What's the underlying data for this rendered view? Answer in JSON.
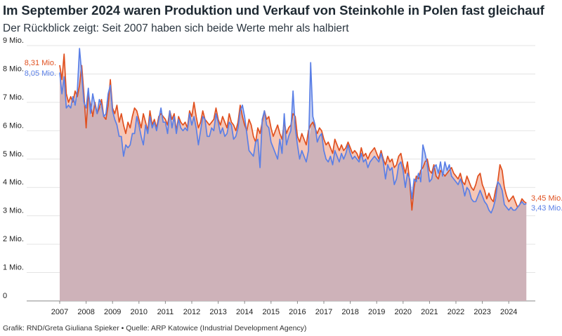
{
  "header": {
    "title": "Im September 2024 waren Produktion und Verkauf von Steinkohle in Polen fast gleichauf",
    "subtitle": "Der Rückblick zeigt: Seit 2007 haben sich beide Werte mehr als halbiert"
  },
  "footer": {
    "credit": "Grafik: RND/Greta Giuliana Spieker • Quelle: ARP Katowice (Industrial Development Agency)"
  },
  "colors": {
    "production": "#e0501f",
    "sales": "#5a7fe6",
    "base_area": "#ceb2b9",
    "prod_above_area": "#f6c6b6",
    "sales_above_area": "#c6d0f2",
    "grid": "#e4e4e4"
  },
  "chart_data": {
    "type": "line",
    "xlabel": "",
    "ylabel": "",
    "ylim": [
      0,
      9
    ],
    "y_ticks": [
      {
        "value": 0,
        "label": "0"
      },
      {
        "value": 1,
        "label": "1 Mio."
      },
      {
        "value": 2,
        "label": "2 Mio."
      },
      {
        "value": 3,
        "label": "3 Mio."
      },
      {
        "value": 4,
        "label": "4 Mio."
      },
      {
        "value": 5,
        "label": "5 Mio."
      },
      {
        "value": 6,
        "label": "6 Mio."
      },
      {
        "value": 7,
        "label": "7 Mio."
      },
      {
        "value": 8,
        "label": "8 Mio."
      },
      {
        "value": 9,
        "label": "9 Mio."
      }
    ],
    "x_ticks": [
      "2007",
      "2008",
      "2009",
      "2010",
      "2011",
      "2012",
      "2013",
      "2014",
      "2015",
      "2016",
      "2017",
      "2018",
      "2019",
      "2020",
      "2021",
      "2022",
      "2023",
      "2024"
    ],
    "start_label_production": "8,31 Mio.",
    "start_label_sales": "8,05 Mio.",
    "end_label_production": "3,45 Mio.",
    "end_label_sales": "3,43 Mio.",
    "x": [
      "2007-01",
      "2007-02",
      "2007-03",
      "2007-04",
      "2007-05",
      "2007-06",
      "2007-07",
      "2007-08",
      "2007-09",
      "2007-10",
      "2007-11",
      "2007-12",
      "2008-01",
      "2008-02",
      "2008-03",
      "2008-04",
      "2008-05",
      "2008-06",
      "2008-07",
      "2008-08",
      "2008-09",
      "2008-10",
      "2008-11",
      "2008-12",
      "2009-01",
      "2009-02",
      "2009-03",
      "2009-04",
      "2009-05",
      "2009-06",
      "2009-07",
      "2009-08",
      "2009-09",
      "2009-10",
      "2009-11",
      "2009-12",
      "2010-01",
      "2010-02",
      "2010-03",
      "2010-04",
      "2010-05",
      "2010-06",
      "2010-07",
      "2010-08",
      "2010-09",
      "2010-10",
      "2010-11",
      "2010-12",
      "2011-01",
      "2011-02",
      "2011-03",
      "2011-04",
      "2011-05",
      "2011-06",
      "2011-07",
      "2011-08",
      "2011-09",
      "2011-10",
      "2011-11",
      "2011-12",
      "2012-01",
      "2012-02",
      "2012-03",
      "2012-04",
      "2012-05",
      "2012-06",
      "2012-07",
      "2012-08",
      "2012-09",
      "2012-10",
      "2012-11",
      "2012-12",
      "2013-01",
      "2013-02",
      "2013-03",
      "2013-04",
      "2013-05",
      "2013-06",
      "2013-07",
      "2013-08",
      "2013-09",
      "2013-10",
      "2013-11",
      "2013-12",
      "2014-01",
      "2014-02",
      "2014-03",
      "2014-04",
      "2014-05",
      "2014-06",
      "2014-07",
      "2014-08",
      "2014-09",
      "2014-10",
      "2014-11",
      "2014-12",
      "2015-01",
      "2015-02",
      "2015-03",
      "2015-04",
      "2015-05",
      "2015-06",
      "2015-07",
      "2015-08",
      "2015-09",
      "2015-10",
      "2015-11",
      "2015-12",
      "2016-01",
      "2016-02",
      "2016-03",
      "2016-04",
      "2016-05",
      "2016-06",
      "2016-07",
      "2016-08",
      "2016-09",
      "2016-10",
      "2016-11",
      "2016-12",
      "2017-01",
      "2017-02",
      "2017-03",
      "2017-04",
      "2017-05",
      "2017-06",
      "2017-07",
      "2017-08",
      "2017-09",
      "2017-10",
      "2017-11",
      "2017-12",
      "2018-01",
      "2018-02",
      "2018-03",
      "2018-04",
      "2018-05",
      "2018-06",
      "2018-07",
      "2018-08",
      "2018-09",
      "2018-10",
      "2018-11",
      "2018-12",
      "2019-01",
      "2019-02",
      "2019-03",
      "2019-04",
      "2019-05",
      "2019-06",
      "2019-07",
      "2019-08",
      "2019-09",
      "2019-10",
      "2019-11",
      "2019-12",
      "2020-01",
      "2020-02",
      "2020-03",
      "2020-04",
      "2020-05",
      "2020-06",
      "2020-07",
      "2020-08",
      "2020-09",
      "2020-10",
      "2020-11",
      "2020-12",
      "2021-01",
      "2021-02",
      "2021-03",
      "2021-04",
      "2021-05",
      "2021-06",
      "2021-07",
      "2021-08",
      "2021-09",
      "2021-10",
      "2021-11",
      "2021-12",
      "2022-01",
      "2022-02",
      "2022-03",
      "2022-04",
      "2022-05",
      "2022-06",
      "2022-07",
      "2022-08",
      "2022-09",
      "2022-10",
      "2022-11",
      "2022-12",
      "2023-01",
      "2023-02",
      "2023-03",
      "2023-04",
      "2023-05",
      "2023-06",
      "2023-07",
      "2023-08",
      "2023-09",
      "2023-10",
      "2023-11",
      "2023-12",
      "2024-01",
      "2024-02",
      "2024-03",
      "2024-04",
      "2024-05",
      "2024-06",
      "2024-07",
      "2024-08",
      "2024-09"
    ],
    "series": [
      {
        "values": [
          8.31,
          7.8,
          8.7,
          7.3,
          7.0,
          7.2,
          7.0,
          7.4,
          7.2,
          7.6,
          8.3,
          7.3,
          6.1,
          7.3,
          6.9,
          6.5,
          7.0,
          6.6,
          6.8,
          7.1,
          6.5,
          6.4,
          6.9,
          7.8,
          6.8,
          6.6,
          6.9,
          6.3,
          6.6,
          6.2,
          5.9,
          6.3,
          6.1,
          6.5,
          6.8,
          6.7,
          6.4,
          6.1,
          6.6,
          6.3,
          6.0,
          6.7,
          6.2,
          6.4,
          6.1,
          6.5,
          6.6,
          6.5,
          6.4,
          6.2,
          6.7,
          6.4,
          6.6,
          6.0,
          6.5,
          6.3,
          6.2,
          6.3,
          6.1,
          6.7,
          6.5,
          7.0,
          6.5,
          6.1,
          6.3,
          6.7,
          6.4,
          6.3,
          6.2,
          6.3,
          6.4,
          6.8,
          6.4,
          6.2,
          6.5,
          6.3,
          6.1,
          6.6,
          6.3,
          6.2,
          6.0,
          6.3,
          6.9,
          6.5,
          6.2,
          6.0,
          6.4,
          6.2,
          5.8,
          5.6,
          6.1,
          5.9,
          6.3,
          6.7,
          6.4,
          6.5,
          6.1,
          5.8,
          6.0,
          6.2,
          5.9,
          5.7,
          6.3,
          5.9,
          6.1,
          6.2,
          6.6,
          6.5,
          5.8,
          5.6,
          5.9,
          5.7,
          5.5,
          6.0,
          6.2,
          6.3,
          6.1,
          5.9,
          6.1,
          6.0,
          5.7,
          5.5,
          5.6,
          5.4,
          5.2,
          5.7,
          5.5,
          5.3,
          5.5,
          5.3,
          5.4,
          5.6,
          5.4,
          5.2,
          5.3,
          5.2,
          5.0,
          5.4,
          5.1,
          5.2,
          5.0,
          5.2,
          5.3,
          5.4,
          5.2,
          5.0,
          5.3,
          5.0,
          4.8,
          5.1,
          4.9,
          5.0,
          4.7,
          4.8,
          5.1,
          5.2,
          4.8,
          4.5,
          4.9,
          4.2,
          3.2,
          4.0,
          4.4,
          4.3,
          4.6,
          4.7,
          4.9,
          5.0,
          4.6,
          4.5,
          4.8,
          4.4,
          4.3,
          4.6,
          4.5,
          4.4,
          4.5,
          4.6,
          4.7,
          4.5,
          4.4,
          4.3,
          4.5,
          4.2,
          4.1,
          4.4,
          4.2,
          4.0,
          3.9,
          4.1,
          4.4,
          4.5,
          4.1,
          3.9,
          3.6,
          3.8,
          3.6,
          3.5,
          3.9,
          4.2,
          4.8,
          4.6,
          4.0,
          3.7,
          3.5,
          3.6,
          3.7,
          3.5,
          3.3,
          3.4,
          3.6,
          3.5,
          3.45
        ]
      },
      {
        "values": [
          8.05,
          7.3,
          7.9,
          6.8,
          6.9,
          6.8,
          7.2,
          6.9,
          7.4,
          8.9,
          8.0,
          7.0,
          6.8,
          7.5,
          6.6,
          7.3,
          6.9,
          6.6,
          7.1,
          6.9,
          6.5,
          6.6,
          7.3,
          7.6,
          6.7,
          6.4,
          6.2,
          5.8,
          5.8,
          5.1,
          5.5,
          5.4,
          5.5,
          5.9,
          5.9,
          6.5,
          6.2,
          5.8,
          5.5,
          6.2,
          5.9,
          6.5,
          6.1,
          6.3,
          6.0,
          6.4,
          6.8,
          6.3,
          6.3,
          5.9,
          6.7,
          6.1,
          6.5,
          5.9,
          6.4,
          6.1,
          6.0,
          6.1,
          6.0,
          6.6,
          6.2,
          6.5,
          6.1,
          5.5,
          6.0,
          6.5,
          6.4,
          5.8,
          5.8,
          6.1,
          6.0,
          6.6,
          6.3,
          5.9,
          6.1,
          5.8,
          5.9,
          6.3,
          6.2,
          5.7,
          5.8,
          6.1,
          6.7,
          6.9,
          6.5,
          5.9,
          5.3,
          5.2,
          5.1,
          5.6,
          5.7,
          4.7,
          6.4,
          6.7,
          6.2,
          6.1,
          5.6,
          5.4,
          5.2,
          5.0,
          5.7,
          5.2,
          6.6,
          5.5,
          5.8,
          6.0,
          7.4,
          6.1,
          5.5,
          5.0,
          5.3,
          5.1,
          4.9,
          5.3,
          8.4,
          6.5,
          6.2,
          5.6,
          5.8,
          5.9,
          5.3,
          5.0,
          4.9,
          5.1,
          4.8,
          5.3,
          5.1,
          4.9,
          5.2,
          5.0,
          5.2,
          5.5,
          5.2,
          5.0,
          5.1,
          5.0,
          4.9,
          5.2,
          4.9,
          5.0,
          4.7,
          4.9,
          5.0,
          5.1,
          5.0,
          4.9,
          5.2,
          4.9,
          4.3,
          4.8,
          4.6,
          4.7,
          4.1,
          4.3,
          4.8,
          4.9,
          4.6,
          4.0,
          4.5,
          4.3,
          3.6,
          4.3,
          4.2,
          4.5,
          4.2,
          5.5,
          5.2,
          4.8,
          4.2,
          4.3,
          4.7,
          4.8,
          4.5,
          4.9,
          4.4,
          4.9,
          4.6,
          4.8,
          4.4,
          4.3,
          4.2,
          4.1,
          4.3,
          4.1,
          3.7,
          4.0,
          3.9,
          3.6,
          3.5,
          3.5,
          3.7,
          3.9,
          3.7,
          3.5,
          3.4,
          3.2,
          3.1,
          3.3,
          3.6,
          4.2,
          4.1,
          3.9,
          3.4,
          3.3,
          3.2,
          3.3,
          3.2,
          3.2,
          3.3,
          3.4,
          3.5,
          3.4,
          3.43
        ]
      }
    ]
  }
}
